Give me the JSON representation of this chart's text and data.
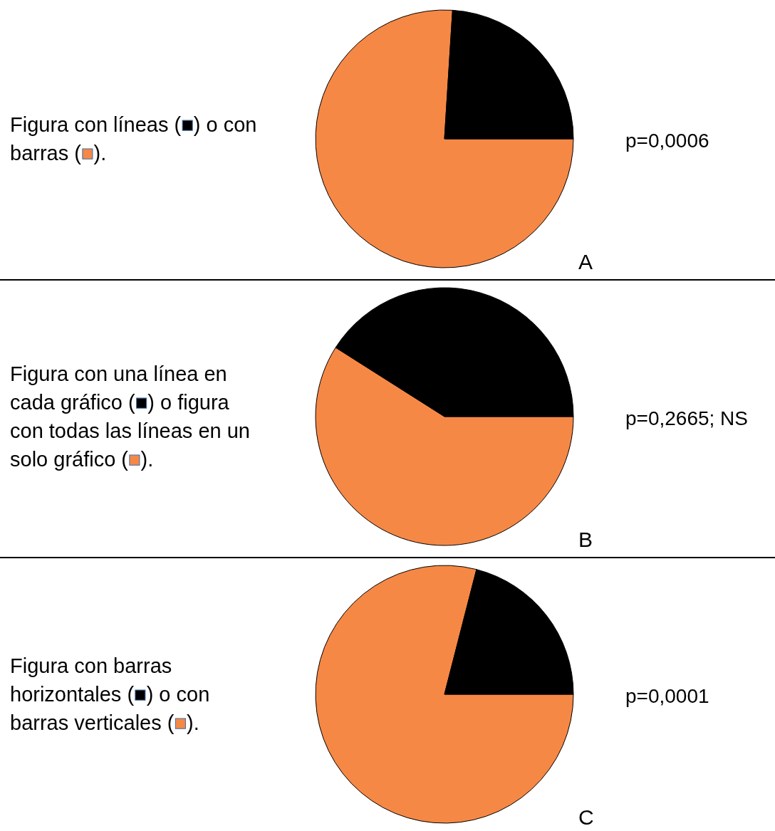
{
  "chart_data": [
    {
      "type": "pie",
      "title": "Figura con líneas (■) o con barras (■).",
      "categories": [
        null,
        null
      ],
      "values": [
        76,
        24
      ],
      "colors": [
        "#f68845",
        "#000000"
      ],
      "annotations": [
        "p=0,0006",
        "A"
      ]
    },
    {
      "type": "pie",
      "title": "Figura con una línea en cada gráfico (■) o figura con todas las líneas en un solo gráfico (■).",
      "categories": [
        null,
        null
      ],
      "values": [
        59,
        41
      ],
      "colors": [
        "#f68845",
        "#000000"
      ],
      "annotations": [
        "p=0,2665; NS",
        "B"
      ]
    },
    {
      "type": "pie",
      "title": "Figura con barras horizontales (■) o con barras verticales (■).",
      "categories": [
        null,
        null
      ],
      "values": [
        79,
        21
      ],
      "colors": [
        "#f68845",
        "#000000"
      ],
      "annotations": [
        "p=0,0001",
        "C"
      ]
    }
  ]
}
